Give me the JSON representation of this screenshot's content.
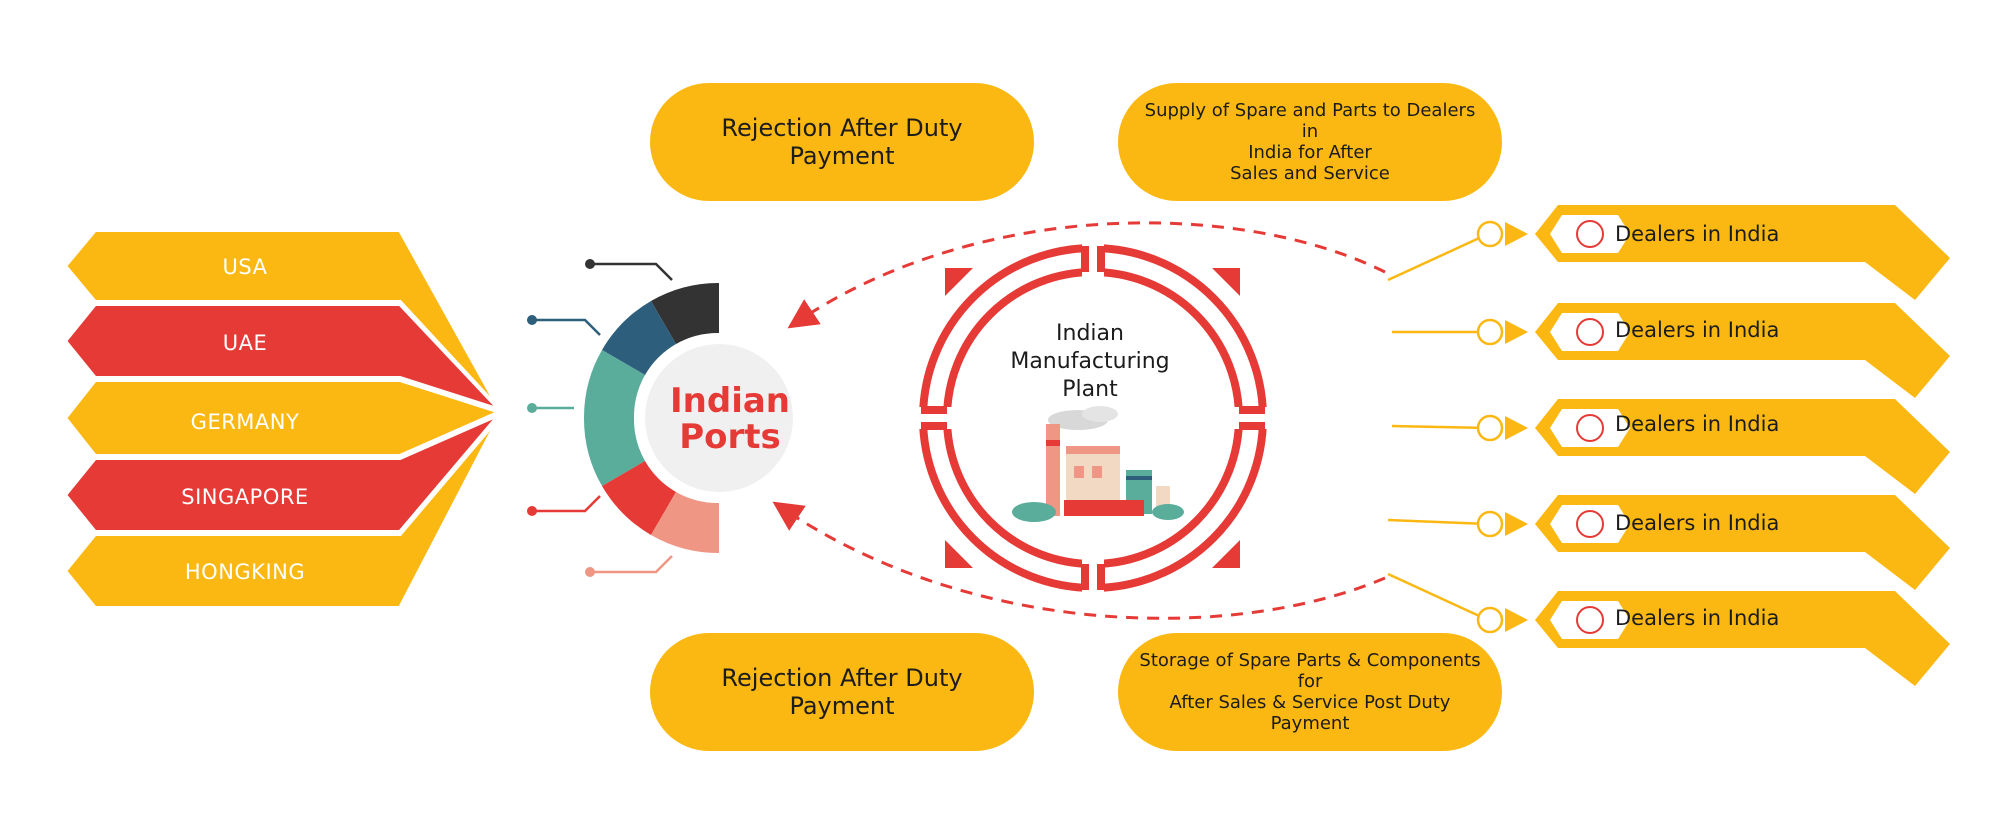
{
  "countries": [
    "USA",
    "UAE",
    "GERMANY",
    "SINGAPORE",
    "HONGKING"
  ],
  "ports": {
    "title": "Indian\nPorts"
  },
  "plant": {
    "title": "Indian\nManufacturing\nPlant"
  },
  "flows": {
    "top_left": "Rejection After Duty Payment",
    "top_right": "Supply of Spare and Parts to Dealers in\nIndia for After\nSales and Service",
    "bottom_left": "Rejection After Duty Payment",
    "bottom_right": "Storage of Spare Parts & Components for\nAfter Sales & Service Post Duty Payment"
  },
  "dealers": [
    "Dealers in India",
    "Dealers in India",
    "Dealers in India",
    "Dealers in India",
    "Dealers in India"
  ],
  "colors": {
    "yellow": "#fbb812",
    "red": "#e63a36",
    "charcoal": "#333333",
    "navy": "#2d5f7c",
    "teal": "#5aac9b",
    "salmon": "#ef9685",
    "light_gray": "#f0f0f0"
  }
}
